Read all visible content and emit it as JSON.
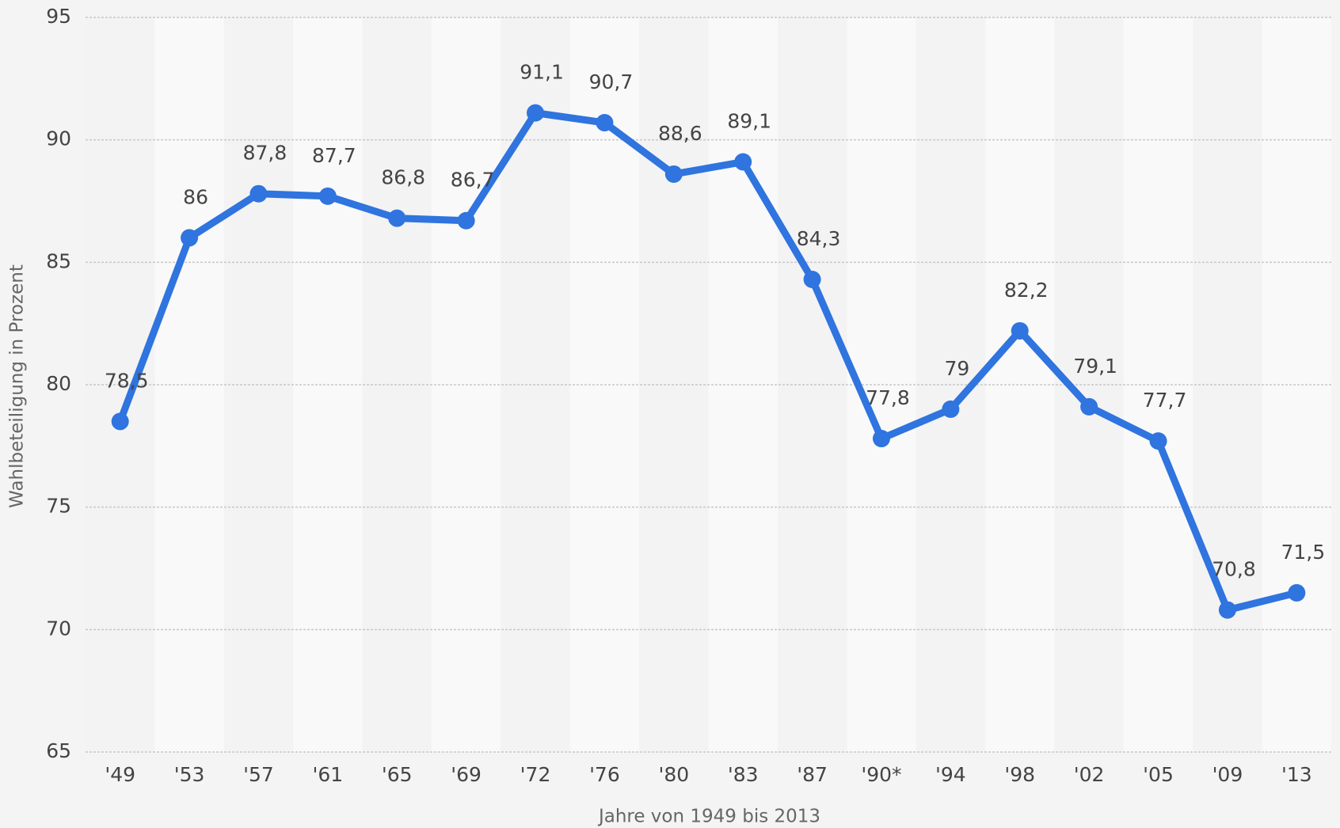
{
  "chart_data": {
    "type": "line",
    "x_label": "Jahre von 1949 bis 2013",
    "y_label": "Wahlbeteiligung in Prozent",
    "categories": [
      "'49",
      "'53",
      "'57",
      "'61",
      "'65",
      "'69",
      "'72",
      "'76",
      "'80",
      "'83",
      "'87",
      "'90*",
      "'94",
      "'98",
      "'02",
      "'05",
      "'09",
      "'13"
    ],
    "series": [
      {
        "name": "Wahlbeteiligung",
        "color": "#2f74df",
        "values": [
          78.5,
          86,
          87.8,
          87.7,
          86.8,
          86.7,
          91.1,
          90.7,
          88.6,
          89.1,
          84.3,
          77.8,
          79,
          82.2,
          79.1,
          77.7,
          70.8,
          71.5
        ],
        "value_labels": [
          "78,5",
          "86",
          "87,8",
          "87,7",
          "86,8",
          "86,7",
          "91,1",
          "90,7",
          "88,6",
          "89,1",
          "84,3",
          "77,8",
          "79",
          "82,2",
          "79,1",
          "77,7",
          "70,8",
          "71,5"
        ]
      }
    ],
    "ylim": [
      65,
      95
    ],
    "yticks": [
      65,
      70,
      75,
      80,
      85,
      90,
      95
    ],
    "grid": true
  }
}
